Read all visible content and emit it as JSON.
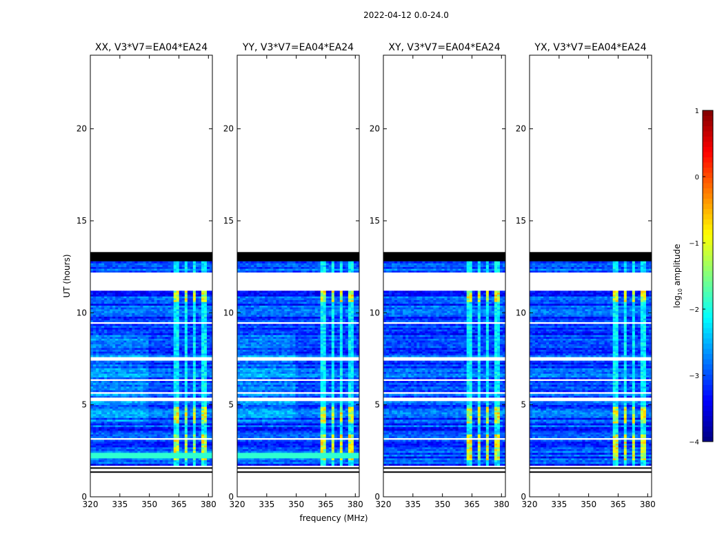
{
  "figure": {
    "suptitle": "2022-04-12 0.0-24.0",
    "xlabel": "frequency (MHz)",
    "ylabel": "UT (hours)"
  },
  "chart_data": {
    "type": "heatmap",
    "x_range": [
      320,
      382
    ],
    "y_range": [
      0,
      24
    ],
    "x_ticks": [
      320,
      335,
      350,
      365,
      380
    ],
    "y_ticks": [
      0,
      5,
      10,
      15,
      20
    ],
    "data_rows_hours": [
      1.4,
      13.3
    ],
    "flagged_block_hours": [
      12.8,
      13.3
    ],
    "gap_bands_hours": [
      [
        1.45,
        1.6
      ],
      [
        11.2,
        12.1
      ],
      [
        5.2,
        5.35
      ],
      [
        9.35,
        9.45
      ],
      [
        7.4,
        7.5
      ]
    ],
    "rfi_channel_mhz": [
      364,
      368.5,
      373,
      378
    ],
    "strong_rfi_hours": [
      [
        2.0,
        3.3
      ],
      [
        10.6,
        11.2
      ],
      [
        4.0,
        4.8
      ]
    ],
    "panels": [
      {
        "title": "XX, V3*V7=EA04*EA24",
        "polarization": "XX",
        "baseline": "V3*V7=EA04*EA24"
      },
      {
        "title": "YY, V3*V7=EA04*EA24",
        "polarization": "YY",
        "baseline": "V3*V7=EA04*EA24"
      },
      {
        "title": "XY, V3*V7=EA04*EA24",
        "polarization": "XY",
        "baseline": "V3*V7=EA04*EA24"
      },
      {
        "title": "YX, V3*V7=EA04*EA24",
        "polarization": "YX",
        "baseline": "V3*V7=EA04*EA24"
      }
    ],
    "colorbar": {
      "label_main": "log",
      "label_sub": "10",
      "label_tail": " amplitude",
      "range": [
        -4,
        1
      ],
      "ticks": [
        1,
        0,
        -1,
        -2,
        -3,
        -4
      ],
      "tick_labels": [
        "1",
        "0",
        "−1",
        "−2",
        "−3",
        "−4"
      ],
      "colormap": "jet"
    }
  }
}
